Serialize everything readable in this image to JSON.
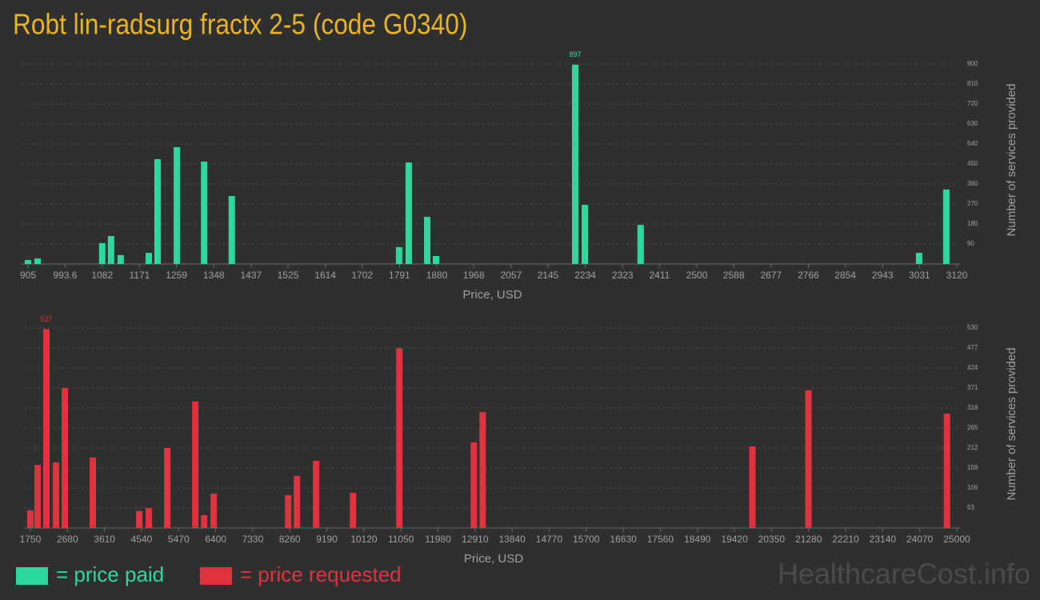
{
  "title": "Robt lin-radsurg fractx 2-5 (code G0340)",
  "watermark": "HealthcareCost.info",
  "chart_data": [
    {
      "type": "bar",
      "x_label": "Price, USD",
      "y_label": "Number of services provided",
      "xlim": [
        905,
        3120
      ],
      "xticks": [
        905,
        993.6,
        1082,
        1171,
        1259,
        1348,
        1437,
        1525,
        1614,
        1702,
        1791,
        1880,
        1968,
        2057,
        2145,
        2234,
        2323,
        2411,
        2500,
        2588,
        2677,
        2766,
        2854,
        2943,
        3031,
        3120
      ],
      "ylim": [
        0,
        900
      ],
      "yticks": [
        90,
        180,
        270,
        360,
        450,
        540,
        630,
        720,
        810,
        900
      ],
      "grid": true,
      "series": [
        {
          "name": "= price paid",
          "color": "#2ed89c",
          "x": [
            905,
            928,
            1082,
            1103,
            1126,
            1193,
            1214,
            1260,
            1325,
            1391,
            1790,
            1813,
            1857,
            1878,
            2210,
            2233,
            2366,
            3030,
            3095
          ],
          "values": [
            18,
            25,
            94,
            126,
            40,
            50,
            472,
            526,
            461,
            306,
            76,
            457,
            212,
            36,
            897,
            266,
            176,
            50,
            335
          ]
        }
      ]
    },
    {
      "type": "bar",
      "x_label": "Price, USD",
      "y_label": "Number of services provided",
      "xlim": [
        1750,
        25000
      ],
      "xticks": [
        1750,
        2680,
        3610,
        4540,
        5470,
        6400,
        7330,
        8260,
        9190,
        10120,
        11050,
        11980,
        12910,
        13840,
        14770,
        15700,
        16630,
        17560,
        18490,
        19420,
        20350,
        21280,
        22210,
        23140,
        24070,
        25000
      ],
      "ylim": [
        0,
        530
      ],
      "yticks": [
        53,
        106,
        159,
        212,
        265,
        318,
        371,
        424,
        477,
        530
      ],
      "grid": true,
      "series": [
        {
          "name": "= price requested",
          "color": "#e0323f",
          "x": [
            1750,
            1931,
            2152,
            2393,
            2614,
            3317,
            4482,
            4723,
            5185,
            5889,
            6110,
            6351,
            8219,
            8440,
            8922,
            9846,
            11011,
            12880,
            13101,
            19871,
            21277,
            24753
          ],
          "values": [
            47,
            167,
            527,
            174,
            371,
            187,
            45,
            53,
            212,
            335,
            34,
            91,
            87,
            138,
            178,
            93,
            477,
            227,
            307,
            216,
            365,
            303
          ]
        }
      ]
    }
  ]
}
